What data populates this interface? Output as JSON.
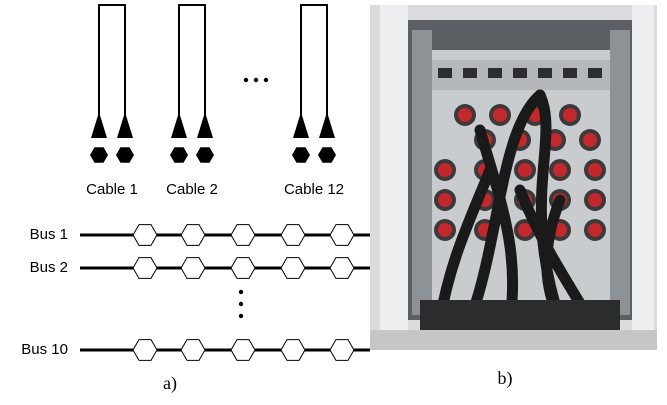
{
  "cables": [
    {
      "label": "Cable 1"
    },
    {
      "label": "Cable 2"
    },
    {
      "label": "Cable 12"
    }
  ],
  "buses": [
    {
      "label": "Bus 1"
    },
    {
      "label": "Bus 2"
    },
    {
      "label": "Bus 10"
    }
  ],
  "captions": {
    "a": "a)",
    "b": "b)"
  }
}
